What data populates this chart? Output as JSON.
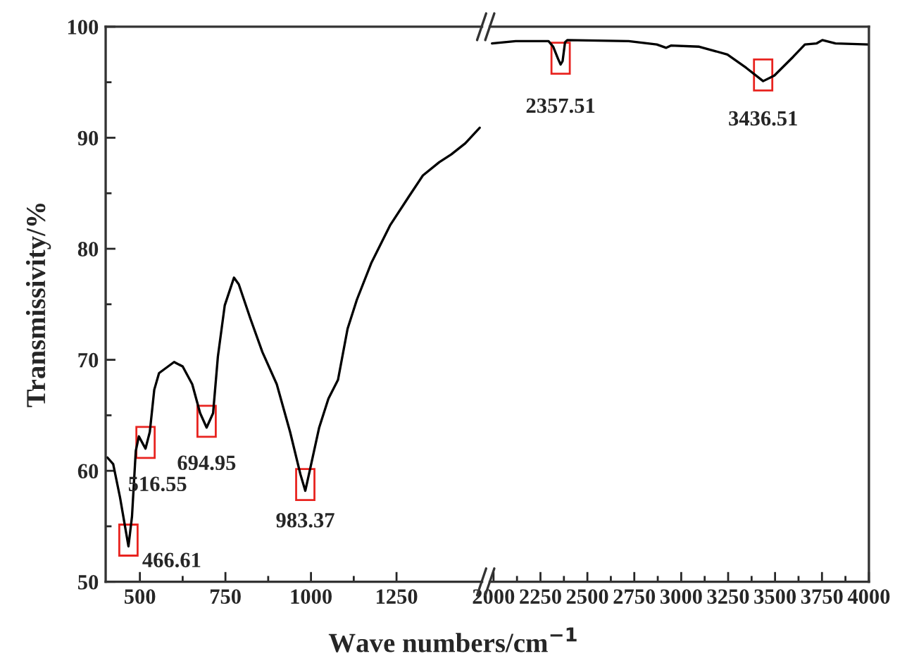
{
  "chart_data": [
    {
      "type": "line",
      "ylabel": "Transmissivity/%",
      "xlabel": "Wave numbers/cm$^{−1}$",
      "xlim": [
        400,
        1500
      ],
      "xticks": [
        500,
        750,
        1000,
        1250
      ],
      "ylim": [
        50,
        100
      ],
      "yticks": [
        50,
        60,
        70,
        80,
        90,
        100
      ],
      "grid": false,
      "marker": "none",
      "line_style": "solid",
      "series": [
        {
          "color": "#000000",
          "x": [
            405,
            422,
            442,
            456,
            466.6,
            477,
            488,
            497,
            511,
            516.5,
            529,
            542,
            556,
            600,
            625,
            653,
            676,
            695,
            714,
            728,
            748,
            775,
            789,
            823,
            858,
            900,
            939,
            969,
            983.4,
            997,
            1024,
            1051,
            1079,
            1107,
            1134,
            1176,
            1231,
            1286,
            1327,
            1375,
            1410,
            1451,
            1493
          ],
          "values": [
            61.2,
            60.6,
            57.6,
            55.1,
            53.2,
            55.9,
            61.8,
            63.1,
            62.3,
            62.0,
            63.5,
            67.3,
            68.8,
            69.8,
            69.4,
            67.8,
            65.2,
            63.9,
            65.2,
            70.3,
            74.9,
            77.4,
            76.8,
            73.7,
            70.7,
            67.8,
            63.5,
            59.7,
            58.2,
            60.1,
            63.9,
            66.5,
            68.2,
            72.8,
            75.4,
            78.7,
            82.1,
            84.7,
            86.6,
            87.8,
            88.5,
            89.5,
            90.9
          ]
        }
      ],
      "annotations": [
        {
          "text": "466.61",
          "x": 466.6,
          "y": 53.2
        },
        {
          "text": "516.55",
          "x": 516.5,
          "y": 62.0
        },
        {
          "text": "694.95",
          "x": 695,
          "y": 63.9
        },
        {
          "text": "983.37",
          "x": 983.4,
          "y": 58.2
        }
      ]
    },
    {
      "type": "line",
      "xlim": [
        1980,
        4000
      ],
      "xticks": [
        2000,
        2250,
        2500,
        2750,
        3000,
        3250,
        3500,
        3750,
        4000
      ],
      "ylim": [
        50,
        100
      ],
      "yticks": [
        50,
        60,
        70,
        80,
        90,
        100
      ],
      "tick_labels": "x",
      "grid": false,
      "marker": "none",
      "line_style": "solid",
      "series": [
        {
          "color": "#000000",
          "x": [
            1992,
            2118,
            2293,
            2318,
            2344,
            2357.5,
            2368,
            2381,
            2393,
            2720,
            2870,
            2920,
            2945,
            3096,
            3246,
            3346,
            3436.5,
            3496,
            3597,
            3659,
            3722,
            3752,
            3822,
            3998
          ],
          "values": [
            98.5,
            98.7,
            98.7,
            98.2,
            97.1,
            96.6,
            96.9,
            98.6,
            98.8,
            98.7,
            98.4,
            98.1,
            98.3,
            98.2,
            97.5,
            96.3,
            95.1,
            95.6,
            97.3,
            98.4,
            98.5,
            98.8,
            98.5,
            98.4
          ]
        }
      ],
      "annotations": [
        {
          "text": "2357.51",
          "x": 2357.5,
          "y": 96.6
        },
        {
          "text": "3436.51",
          "x": 3436.5,
          "y": 95.1
        }
      ]
    }
  ]
}
